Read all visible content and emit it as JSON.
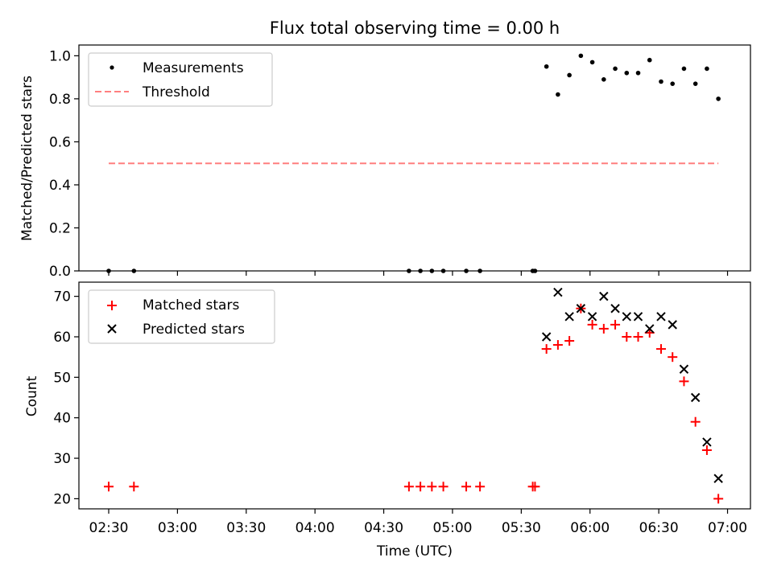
{
  "chart_data": [
    {
      "type": "scatter",
      "title": "Flux total observing time = 0.00 h",
      "ylabel": "Matched/Predicted stars",
      "ylim": [
        0,
        1.05
      ],
      "yticks": [
        "0.0",
        "0.2",
        "0.4",
        "0.6",
        "0.8",
        "1.0"
      ],
      "legend_position": "top-left",
      "series": [
        {
          "name": "Measurements",
          "marker": "dot",
          "color": "#000000",
          "x": [
            "02:30",
            "02:41",
            "04:41",
            "04:46",
            "04:51",
            "04:56",
            "05:06",
            "05:12",
            "05:35",
            "05:36",
            "05:41",
            "05:46",
            "05:51",
            "05:56",
            "06:01",
            "06:06",
            "06:11",
            "06:16",
            "06:21",
            "06:26",
            "06:31",
            "06:36",
            "06:41",
            "06:46",
            "06:51",
            "06:56"
          ],
          "y": [
            0,
            0,
            0,
            0,
            0,
            0,
            0,
            0,
            0,
            0,
            0.95,
            0.82,
            0.91,
            1.0,
            0.97,
            0.89,
            0.94,
            0.92,
            0.92,
            0.98,
            0.88,
            0.87,
            0.94,
            0.87,
            0.94,
            0.8
          ]
        },
        {
          "name": "Threshold",
          "style": "dashed",
          "color": "#ff7f7f",
          "x": [
            "02:30",
            "06:56"
          ],
          "y": [
            0.5,
            0.5
          ]
        }
      ]
    },
    {
      "type": "scatter",
      "xlabel": "Time (UTC)",
      "ylabel": "Count",
      "ylim": [
        17.5,
        73.5
      ],
      "yticks": [
        "20",
        "30",
        "40",
        "50",
        "60",
        "70"
      ],
      "xticks": [
        "02:30",
        "03:00",
        "03:30",
        "04:00",
        "04:30",
        "05:00",
        "05:30",
        "06:00",
        "06:30",
        "07:00"
      ],
      "xlim": [
        "02:17",
        "07:10"
      ],
      "legend_position": "top-left",
      "series": [
        {
          "name": "Matched stars",
          "marker": "plus",
          "color": "#ff0000",
          "x": [
            "02:30",
            "02:41",
            "04:41",
            "04:46",
            "04:51",
            "04:56",
            "05:06",
            "05:12",
            "05:35",
            "05:36",
            "05:41",
            "05:46",
            "05:51",
            "05:56",
            "06:01",
            "06:06",
            "06:11",
            "06:16",
            "06:21",
            "06:26",
            "06:31",
            "06:36",
            "06:41",
            "06:46",
            "06:51",
            "06:56"
          ],
          "y": [
            23,
            23,
            23,
            23,
            23,
            23,
            23,
            23,
            23,
            23,
            57,
            58,
            59,
            67,
            63,
            62,
            63,
            60,
            60,
            61,
            57,
            55,
            49,
            39,
            32,
            20
          ]
        },
        {
          "name": "Predicted stars",
          "marker": "x",
          "color": "#000000",
          "x": [
            "05:41",
            "05:46",
            "05:51",
            "05:56",
            "06:01",
            "06:06",
            "06:11",
            "06:16",
            "06:21",
            "06:26",
            "06:31",
            "06:36",
            "06:41",
            "06:46",
            "06:51",
            "06:56"
          ],
          "y": [
            60,
            71,
            65,
            67,
            65,
            70,
            67,
            65,
            65,
            62,
            65,
            63,
            52,
            45,
            34,
            25
          ]
        }
      ]
    }
  ]
}
